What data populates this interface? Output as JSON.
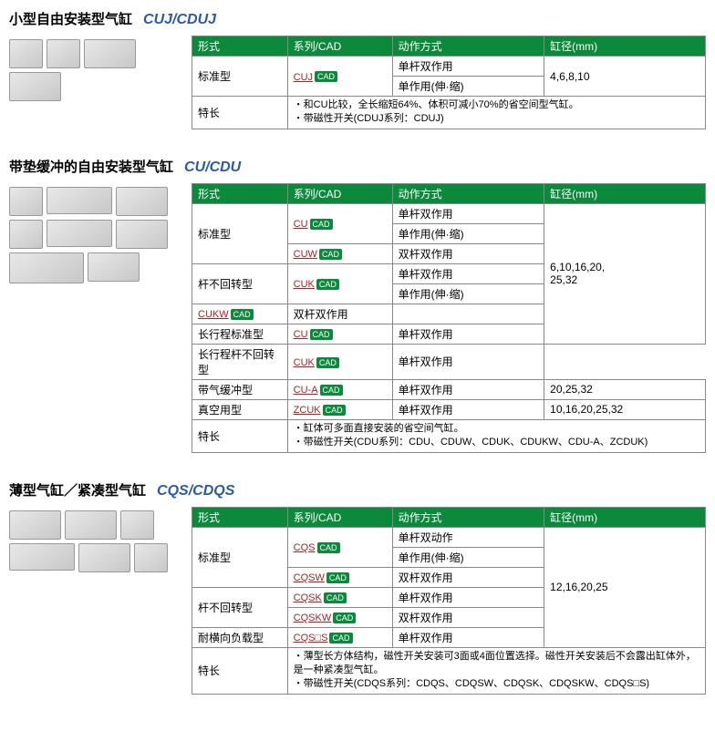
{
  "sections": [
    {
      "title_cn": "小型自由安装型气缸",
      "title_model": "CUJ/CDUJ",
      "headers": [
        "形式",
        "系列/CAD",
        "动作方式",
        "缸径(mm)"
      ],
      "rows": [
        {
          "type": "标准型",
          "type_rowspan": 2,
          "series": "CUJ",
          "cad": true,
          "series_rowspan": 2,
          "action": "单杆双作用",
          "bore": "4,6,8,10",
          "bore_rowspan": 2
        },
        {
          "action": "单作用(伸·缩)"
        }
      ],
      "feature_label": "特长",
      "feature": "・和CU比较，全长缩短64%、体积可减小70%的省空间型气缸。<br>・带磁性开关(CDUJ系列：CDUJ)"
    },
    {
      "title_cn": "带垫缓冲的自由安装型气缸",
      "title_model": "CU/CDU",
      "headers": [
        "形式",
        "系列/CAD",
        "动作方式",
        "缸径(mm)"
      ],
      "rows": [
        {
          "type": "标准型",
          "type_rowspan": 3,
          "series": "CU",
          "cad": true,
          "series_rowspan": 2,
          "action": "单杆双作用",
          "bore": "6,10,16,20,<br>25,32",
          "bore_rowspan": 7
        },
        {
          "action": "单作用(伸·缩)"
        },
        {
          "series": "CUW",
          "cad": true,
          "action": "双杆双作用"
        },
        {
          "type": "杆不回转型",
          "type_rowspan": 2,
          "series": "CUK",
          "cad": true,
          "series_rowspan": 2,
          "action": "单杆双作用"
        },
        {
          "action": "单作用(伸·缩)"
        },
        {
          "series": "CUKW",
          "cad": true,
          "action": "双杆双作用"
        },
        {
          "type": "长行程标准型",
          "series": "CU",
          "cad": true,
          "action": "单杆双作用"
        },
        {
          "type": "长行程杆不回转型",
          "series": "CUK",
          "cad": true,
          "action": "单杆双作用"
        },
        {
          "type": "带气缓冲型",
          "series": "CU-A",
          "cad": true,
          "action": "单杆双作用",
          "bore": "20,25,32"
        },
        {
          "type": "真空用型",
          "series": "ZCUK",
          "cad": true,
          "action": "单杆双作用",
          "bore": "10,16,20,25,32"
        }
      ],
      "feature_label": "特长",
      "feature": "・缸体可多面直接安装的省空间气缸。<br>・带磁性开关(CDU系列：CDU、CDUW、CDUK、CDUKW、CDU-A、ZCDUK)"
    },
    {
      "title_cn": "薄型气缸／紧凑型气缸",
      "title_model": "CQS/CDQS",
      "headers": [
        "形式",
        "系列/CAD",
        "动作方式",
        "缸径(mm)"
      ],
      "rows": [
        {
          "type": "标准型",
          "type_rowspan": 3,
          "series": "CQS",
          "cad": true,
          "series_rowspan": 2,
          "action": "单杆双动作",
          "bore": "12,16,20,25",
          "bore_rowspan": 6
        },
        {
          "action": "单作用(伸·缩)"
        },
        {
          "series": "CQSW",
          "cad": true,
          "action": "双杆双作用"
        },
        {
          "type": "杆不回转型",
          "type_rowspan": 2,
          "series": "CQSK",
          "cad": true,
          "action": "单杆双作用"
        },
        {
          "series": "CQSKW",
          "cad": true,
          "action": "双杆双作用"
        },
        {
          "type": "耐横向负载型",
          "series": "CQS□S",
          "cad": true,
          "action": "单杆双作用"
        }
      ],
      "feature_label": "特长",
      "feature": "・薄型长方体结构，磁性开关安装可3面或4面位置选择。磁性开关安装后不会露出缸体外，是一种紧凑型气缸。<br>・带磁性开关(CDQS系列：CDQS、CDQSW、CDQSK、CDQSKW、CDQS□S)"
    }
  ],
  "cad_label": "CAD"
}
